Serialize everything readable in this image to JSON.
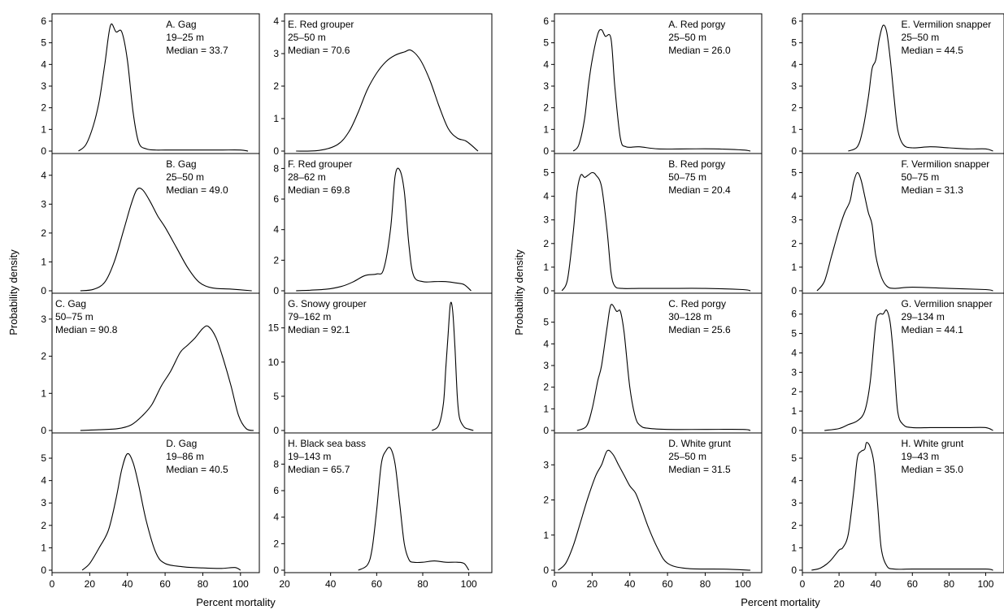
{
  "figure": {
    "groups": [
      {
        "ylabel": "Probability density",
        "xlabel": "Percent mortality"
      },
      {
        "ylabel": "Probability density",
        "xlabel": "Percent mortality"
      }
    ]
  },
  "chart_data": [
    {
      "id": "gag-a",
      "type": "line",
      "title": "A. Gag",
      "depth": "19–25 m",
      "median_label": "Median = 33.7",
      "xlim": [
        0,
        110
      ],
      "ylim": [
        0,
        6
      ],
      "yticks": [
        0,
        1,
        2,
        3,
        4,
        5,
        6
      ],
      "x": [
        14,
        18,
        22,
        25,
        28,
        31,
        34,
        37,
        40,
        43,
        46,
        50,
        55,
        60,
        70,
        80,
        90,
        100,
        104
      ],
      "y": [
        0,
        0.3,
        1.2,
        2.3,
        4.0,
        5.8,
        5.5,
        5.5,
        4.2,
        1.8,
        0.4,
        0.1,
        0.05,
        0.05,
        0.05,
        0.05,
        0.05,
        0.05,
        0
      ]
    },
    {
      "id": "gag-b",
      "type": "line",
      "title": "B. Gag",
      "depth": "25–50 m",
      "median_label": "Median = 49.0",
      "xlim": [
        0,
        110
      ],
      "ylim": [
        0,
        4.5
      ],
      "yticks": [
        0,
        1,
        2,
        3,
        4
      ],
      "x": [
        15,
        22,
        28,
        33,
        38,
        42,
        45,
        48,
        52,
        56,
        60,
        66,
        72,
        78,
        85,
        95,
        106
      ],
      "y": [
        0,
        0.05,
        0.3,
        1.0,
        2.1,
        3.0,
        3.5,
        3.5,
        3.1,
        2.6,
        2.2,
        1.5,
        0.8,
        0.3,
        0.1,
        0.06,
        0
      ]
    },
    {
      "id": "gag-c",
      "type": "line",
      "title": "C. Gag",
      "depth": "50–75 m",
      "median_label": "Median = 90.8",
      "xlim": [
        0,
        110
      ],
      "ylim": [
        0,
        3.5
      ],
      "yticks": [
        0,
        1,
        2,
        3
      ],
      "x": [
        15,
        25,
        35,
        42,
        48,
        53,
        58,
        63,
        68,
        72,
        76,
        80,
        83,
        87,
        91,
        95,
        99,
        103,
        107
      ],
      "y": [
        0,
        0.02,
        0.05,
        0.15,
        0.4,
        0.7,
        1.2,
        1.6,
        2.1,
        2.3,
        2.5,
        2.75,
        2.8,
        2.5,
        1.9,
        1.2,
        0.4,
        0.05,
        0
      ]
    },
    {
      "id": "gag-d",
      "type": "line",
      "title": "D. Gag",
      "depth": "19–86 m",
      "median_label": "Median = 40.5",
      "xlim": [
        0,
        110
      ],
      "ylim": [
        0,
        5.8
      ],
      "yticks": [
        0,
        1,
        2,
        3,
        4,
        5
      ],
      "x": [
        16,
        20,
        25,
        30,
        34,
        37,
        40,
        43,
        46,
        50,
        55,
        60,
        70,
        80,
        90,
        97,
        100
      ],
      "y": [
        0,
        0.3,
        1.0,
        1.8,
        3.2,
        4.5,
        5.2,
        4.8,
        3.8,
        2.2,
        0.8,
        0.3,
        0.15,
        0.1,
        0.08,
        0.12,
        0
      ]
    },
    {
      "id": "red-grouper-e",
      "type": "line",
      "title": "E. Red grouper",
      "depth": "25–50 m",
      "median_label": "Median = 70.6",
      "xlim": [
        20,
        110
      ],
      "ylim": [
        0,
        4
      ],
      "yticks": [
        0,
        1,
        2,
        3,
        4
      ],
      "x": [
        25,
        35,
        43,
        48,
        52,
        56,
        60,
        64,
        68,
        72,
        75,
        79,
        83,
        87,
        91,
        95,
        99,
        104
      ],
      "y": [
        0,
        0.02,
        0.2,
        0.6,
        1.2,
        1.9,
        2.4,
        2.75,
        2.95,
        3.05,
        3.1,
        2.8,
        2.2,
        1.4,
        0.7,
        0.4,
        0.3,
        0
      ]
    },
    {
      "id": "red-grouper-f",
      "type": "line",
      "title": "F. Red grouper",
      "depth": "28–62 m",
      "median_label": "Median = 69.8",
      "xlim": [
        20,
        110
      ],
      "ylim": [
        0,
        8.5
      ],
      "yticks": [
        0,
        2,
        4,
        6,
        8
      ],
      "x": [
        25,
        38,
        45,
        50,
        55,
        60,
        63,
        66,
        68,
        70,
        72,
        74,
        76,
        80,
        85,
        90,
        95,
        98,
        101
      ],
      "y": [
        0,
        0.1,
        0.3,
        0.6,
        1.0,
        1.1,
        1.4,
        4.0,
        7.5,
        7.9,
        6.5,
        3.0,
        1.0,
        0.6,
        0.6,
        0.6,
        0.5,
        0.4,
        0
      ]
    },
    {
      "id": "snowy-grouper-g",
      "type": "line",
      "title": "G. Snowy grouper",
      "depth": "79–162 m",
      "median_label": "Median = 92.1",
      "xlim": [
        20,
        110
      ],
      "ylim": [
        0,
        19
      ],
      "yticks": [
        0,
        5,
        10,
        15
      ],
      "x": [
        84,
        87,
        89,
        90,
        91,
        92,
        93,
        94,
        95,
        96,
        98,
        100,
        102
      ],
      "y": [
        0,
        0.8,
        4,
        9,
        14,
        18.5,
        17.5,
        12,
        5,
        1.8,
        0.5,
        0.2,
        0
      ]
    },
    {
      "id": "black-sea-bass-h",
      "type": "line",
      "title": "H. Black sea bass",
      "depth": "19–143 m",
      "median_label": "Median = 65.7",
      "xlim": [
        20,
        110
      ],
      "ylim": [
        0,
        9.8
      ],
      "yticks": [
        0,
        2,
        4,
        6,
        8
      ],
      "x": [
        52,
        56,
        58,
        60,
        62,
        64,
        66,
        68,
        70,
        72,
        74,
        76,
        80,
        85,
        90,
        95,
        98,
        100
      ],
      "y": [
        0,
        0.4,
        1.6,
        4.5,
        8.0,
        9.0,
        9.2,
        8.0,
        5.0,
        2.0,
        0.8,
        0.6,
        0.6,
        0.7,
        0.6,
        0.6,
        0.5,
        0
      ]
    },
    {
      "id": "red-porgy-a",
      "type": "line",
      "title": "A. Red porgy",
      "depth": "25–50 m",
      "median_label": "Median = 26.0",
      "xlim": [
        0,
        110
      ],
      "ylim": [
        0,
        6
      ],
      "yticks": [
        0,
        1,
        2,
        3,
        4,
        5,
        6
      ],
      "x": [
        10,
        13,
        16,
        18,
        20,
        23,
        25,
        27,
        30,
        32,
        35,
        38,
        45,
        55,
        70,
        85,
        100,
        104
      ],
      "y": [
        0,
        0.3,
        1.5,
        3.0,
        4.2,
        5.4,
        5.6,
        5.3,
        5.2,
        3.0,
        0.6,
        0.2,
        0.2,
        0.1,
        0.1,
        0.1,
        0.05,
        0
      ]
    },
    {
      "id": "red-porgy-b",
      "type": "line",
      "title": "B. Red porgy",
      "depth": "50–75 m",
      "median_label": "Median = 20.4",
      "xlim": [
        0,
        110
      ],
      "ylim": [
        0,
        5.5
      ],
      "yticks": [
        0,
        1,
        2,
        3,
        4,
        5
      ],
      "x": [
        4,
        7,
        10,
        12,
        14,
        16,
        18,
        20,
        22,
        25,
        28,
        30,
        32,
        36,
        45,
        60,
        80,
        100,
        104
      ],
      "y": [
        0,
        0.5,
        2.5,
        4.2,
        4.9,
        4.8,
        4.9,
        5.0,
        4.9,
        4.4,
        2.5,
        0.8,
        0.2,
        0.1,
        0.1,
        0.1,
        0.1,
        0.05,
        0
      ]
    },
    {
      "id": "red-porgy-c",
      "type": "line",
      "title": "C. Red porgy",
      "depth": "30–128 m",
      "median_label": "Median = 25.6",
      "xlim": [
        0,
        110
      ],
      "ylim": [
        0,
        6
      ],
      "yticks": [
        0,
        1,
        2,
        3,
        4,
        5
      ],
      "x": [
        12,
        17,
        20,
        23,
        25,
        28,
        30,
        33,
        35,
        37,
        40,
        43,
        46,
        50,
        60,
        80,
        100,
        104
      ],
      "y": [
        0,
        0.2,
        1.0,
        2.3,
        3.0,
        4.8,
        5.8,
        5.5,
        5.5,
        4.5,
        2.0,
        0.6,
        0.2,
        0.1,
        0.05,
        0.05,
        0.05,
        0
      ]
    },
    {
      "id": "white-grunt-d",
      "type": "line",
      "title": "D. White grunt",
      "depth": "25–50 m",
      "median_label": "Median = 31.5",
      "xlim": [
        0,
        110
      ],
      "ylim": [
        0,
        3.7
      ],
      "yticks": [
        0,
        1,
        2,
        3
      ],
      "x": [
        2,
        6,
        10,
        14,
        18,
        22,
        25,
        28,
        31,
        34,
        37,
        40,
        43,
        46,
        50,
        55,
        60,
        70,
        90,
        104
      ],
      "y": [
        0,
        0.2,
        0.7,
        1.4,
        2.1,
        2.7,
        3.0,
        3.4,
        3.3,
        3.0,
        2.7,
        2.4,
        2.2,
        1.8,
        1.2,
        0.6,
        0.2,
        0.05,
        0.03,
        0
      ]
    },
    {
      "id": "vermilion-snapper-e",
      "type": "line",
      "title": "E. Vermilion snapper",
      "depth": "25–50 m",
      "median_label": "Median = 44.5",
      "xlim": [
        0,
        110
      ],
      "ylim": [
        0,
        6
      ],
      "yticks": [
        0,
        1,
        2,
        3,
        4,
        5,
        6
      ],
      "x": [
        25,
        30,
        33,
        36,
        38,
        40,
        42,
        44,
        46,
        48,
        50,
        52,
        55,
        60,
        70,
        80,
        90,
        100,
        104
      ],
      "y": [
        0,
        0.2,
        1.0,
        2.5,
        3.8,
        4.2,
        5.2,
        5.8,
        5.5,
        4.2,
        2.5,
        1.0,
        0.3,
        0.15,
        0.2,
        0.15,
        0.1,
        0.1,
        0
      ]
    },
    {
      "id": "vermilion-snapper-f",
      "type": "line",
      "title": "F. Vermilion snapper",
      "depth": "50–75 m",
      "median_label": "Median = 31.3",
      "xlim": [
        0,
        110
      ],
      "ylim": [
        0,
        5.5
      ],
      "yticks": [
        0,
        1,
        2,
        3,
        4,
        5
      ],
      "x": [
        8,
        12,
        16,
        20,
        23,
        26,
        28,
        30,
        32,
        34,
        36,
        38,
        40,
        43,
        46,
        50,
        60,
        80,
        100,
        104
      ],
      "y": [
        0,
        0.4,
        1.5,
        2.6,
        3.3,
        3.8,
        4.6,
        5.0,
        4.7,
        4.0,
        3.3,
        2.8,
        1.5,
        0.6,
        0.2,
        0.1,
        0.15,
        0.1,
        0.05,
        0
      ]
    },
    {
      "id": "vermilion-snapper-g",
      "type": "line",
      "title": "G. Vermilion snapper",
      "depth": "29–134 m",
      "median_label": "Median = 44.1",
      "xlim": [
        0,
        110
      ],
      "ylim": [
        0,
        6.7
      ],
      "yticks": [
        0,
        1,
        2,
        3,
        4,
        5,
        6
      ],
      "x": [
        12,
        20,
        25,
        30,
        34,
        37,
        40,
        42,
        44,
        46,
        48,
        50,
        52,
        55,
        60,
        70,
        80,
        90,
        100,
        104
      ],
      "y": [
        0,
        0.1,
        0.3,
        0.5,
        1.0,
        2.5,
        5.5,
        6.0,
        6.0,
        6.2,
        5.5,
        3.5,
        1.0,
        0.3,
        0.15,
        0.15,
        0.15,
        0.15,
        0.15,
        0
      ]
    },
    {
      "id": "white-grunt-h",
      "type": "line",
      "title": "H. White grunt",
      "depth": "19–43 m",
      "median_label": "Median = 35.0",
      "xlim": [
        0,
        110
      ],
      "ylim": [
        0,
        5.8
      ],
      "yticks": [
        0,
        1,
        2,
        3,
        4,
        5
      ],
      "x": [
        5,
        10,
        15,
        20,
        22,
        25,
        28,
        30,
        32,
        34,
        35,
        37,
        39,
        41,
        43,
        46,
        50,
        60,
        80,
        100,
        104
      ],
      "y": [
        0,
        0.1,
        0.4,
        0.9,
        1.0,
        1.6,
        3.5,
        5.0,
        5.3,
        5.4,
        5.7,
        5.5,
        4.8,
        3.0,
        1.0,
        0.2,
        0.05,
        0.05,
        0.05,
        0.05,
        0
      ]
    }
  ]
}
